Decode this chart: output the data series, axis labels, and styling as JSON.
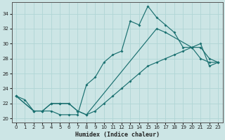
{
  "xlabel": "Humidex (Indice chaleur)",
  "bg_color": "#cce5e5",
  "grid_color": "#b0d5d5",
  "line_color": "#1a7070",
  "xlim": [
    -0.5,
    23.5
  ],
  "ylim": [
    19.5,
    35.5
  ],
  "xticks": [
    0,
    1,
    2,
    3,
    4,
    5,
    6,
    7,
    8,
    9,
    10,
    11,
    12,
    13,
    14,
    15,
    16,
    17,
    18,
    19,
    20,
    21,
    22,
    23
  ],
  "yticks": [
    20,
    22,
    24,
    26,
    28,
    30,
    32,
    34
  ],
  "line1_x": [
    0,
    1,
    2,
    3,
    4,
    5,
    6,
    7,
    8,
    9,
    10,
    11,
    12,
    13,
    14,
    15,
    16,
    17,
    18,
    19,
    20,
    21,
    22,
    23
  ],
  "line1_y": [
    23,
    22.5,
    21,
    21,
    21,
    20.5,
    20.5,
    20.5,
    24.5,
    25.5,
    27.5,
    28.5,
    29.0,
    33,
    32.5,
    35,
    33.5,
    32.5,
    31.5,
    29.5,
    29.5,
    28,
    27.5,
    27.5
  ],
  "line2_x": [
    0,
    2,
    3,
    4,
    5,
    6,
    7,
    8,
    16,
    17,
    20,
    21,
    22,
    23
  ],
  "line2_y": [
    23,
    21,
    21,
    22,
    22,
    22,
    21,
    20.5,
    32,
    31.5,
    29.5,
    29.5,
    28,
    27.5
  ],
  "line3_x": [
    0,
    2,
    3,
    4,
    5,
    6,
    7,
    8,
    9,
    10,
    11,
    12,
    13,
    14,
    15,
    16,
    17,
    18,
    19,
    20,
    21,
    22,
    23
  ],
  "line3_y": [
    23,
    21,
    21,
    22,
    22,
    22,
    21,
    20.5,
    21,
    22,
    23,
    24,
    25,
    26,
    27,
    27.5,
    28,
    28.5,
    29,
    29.5,
    30,
    27,
    27.5
  ]
}
